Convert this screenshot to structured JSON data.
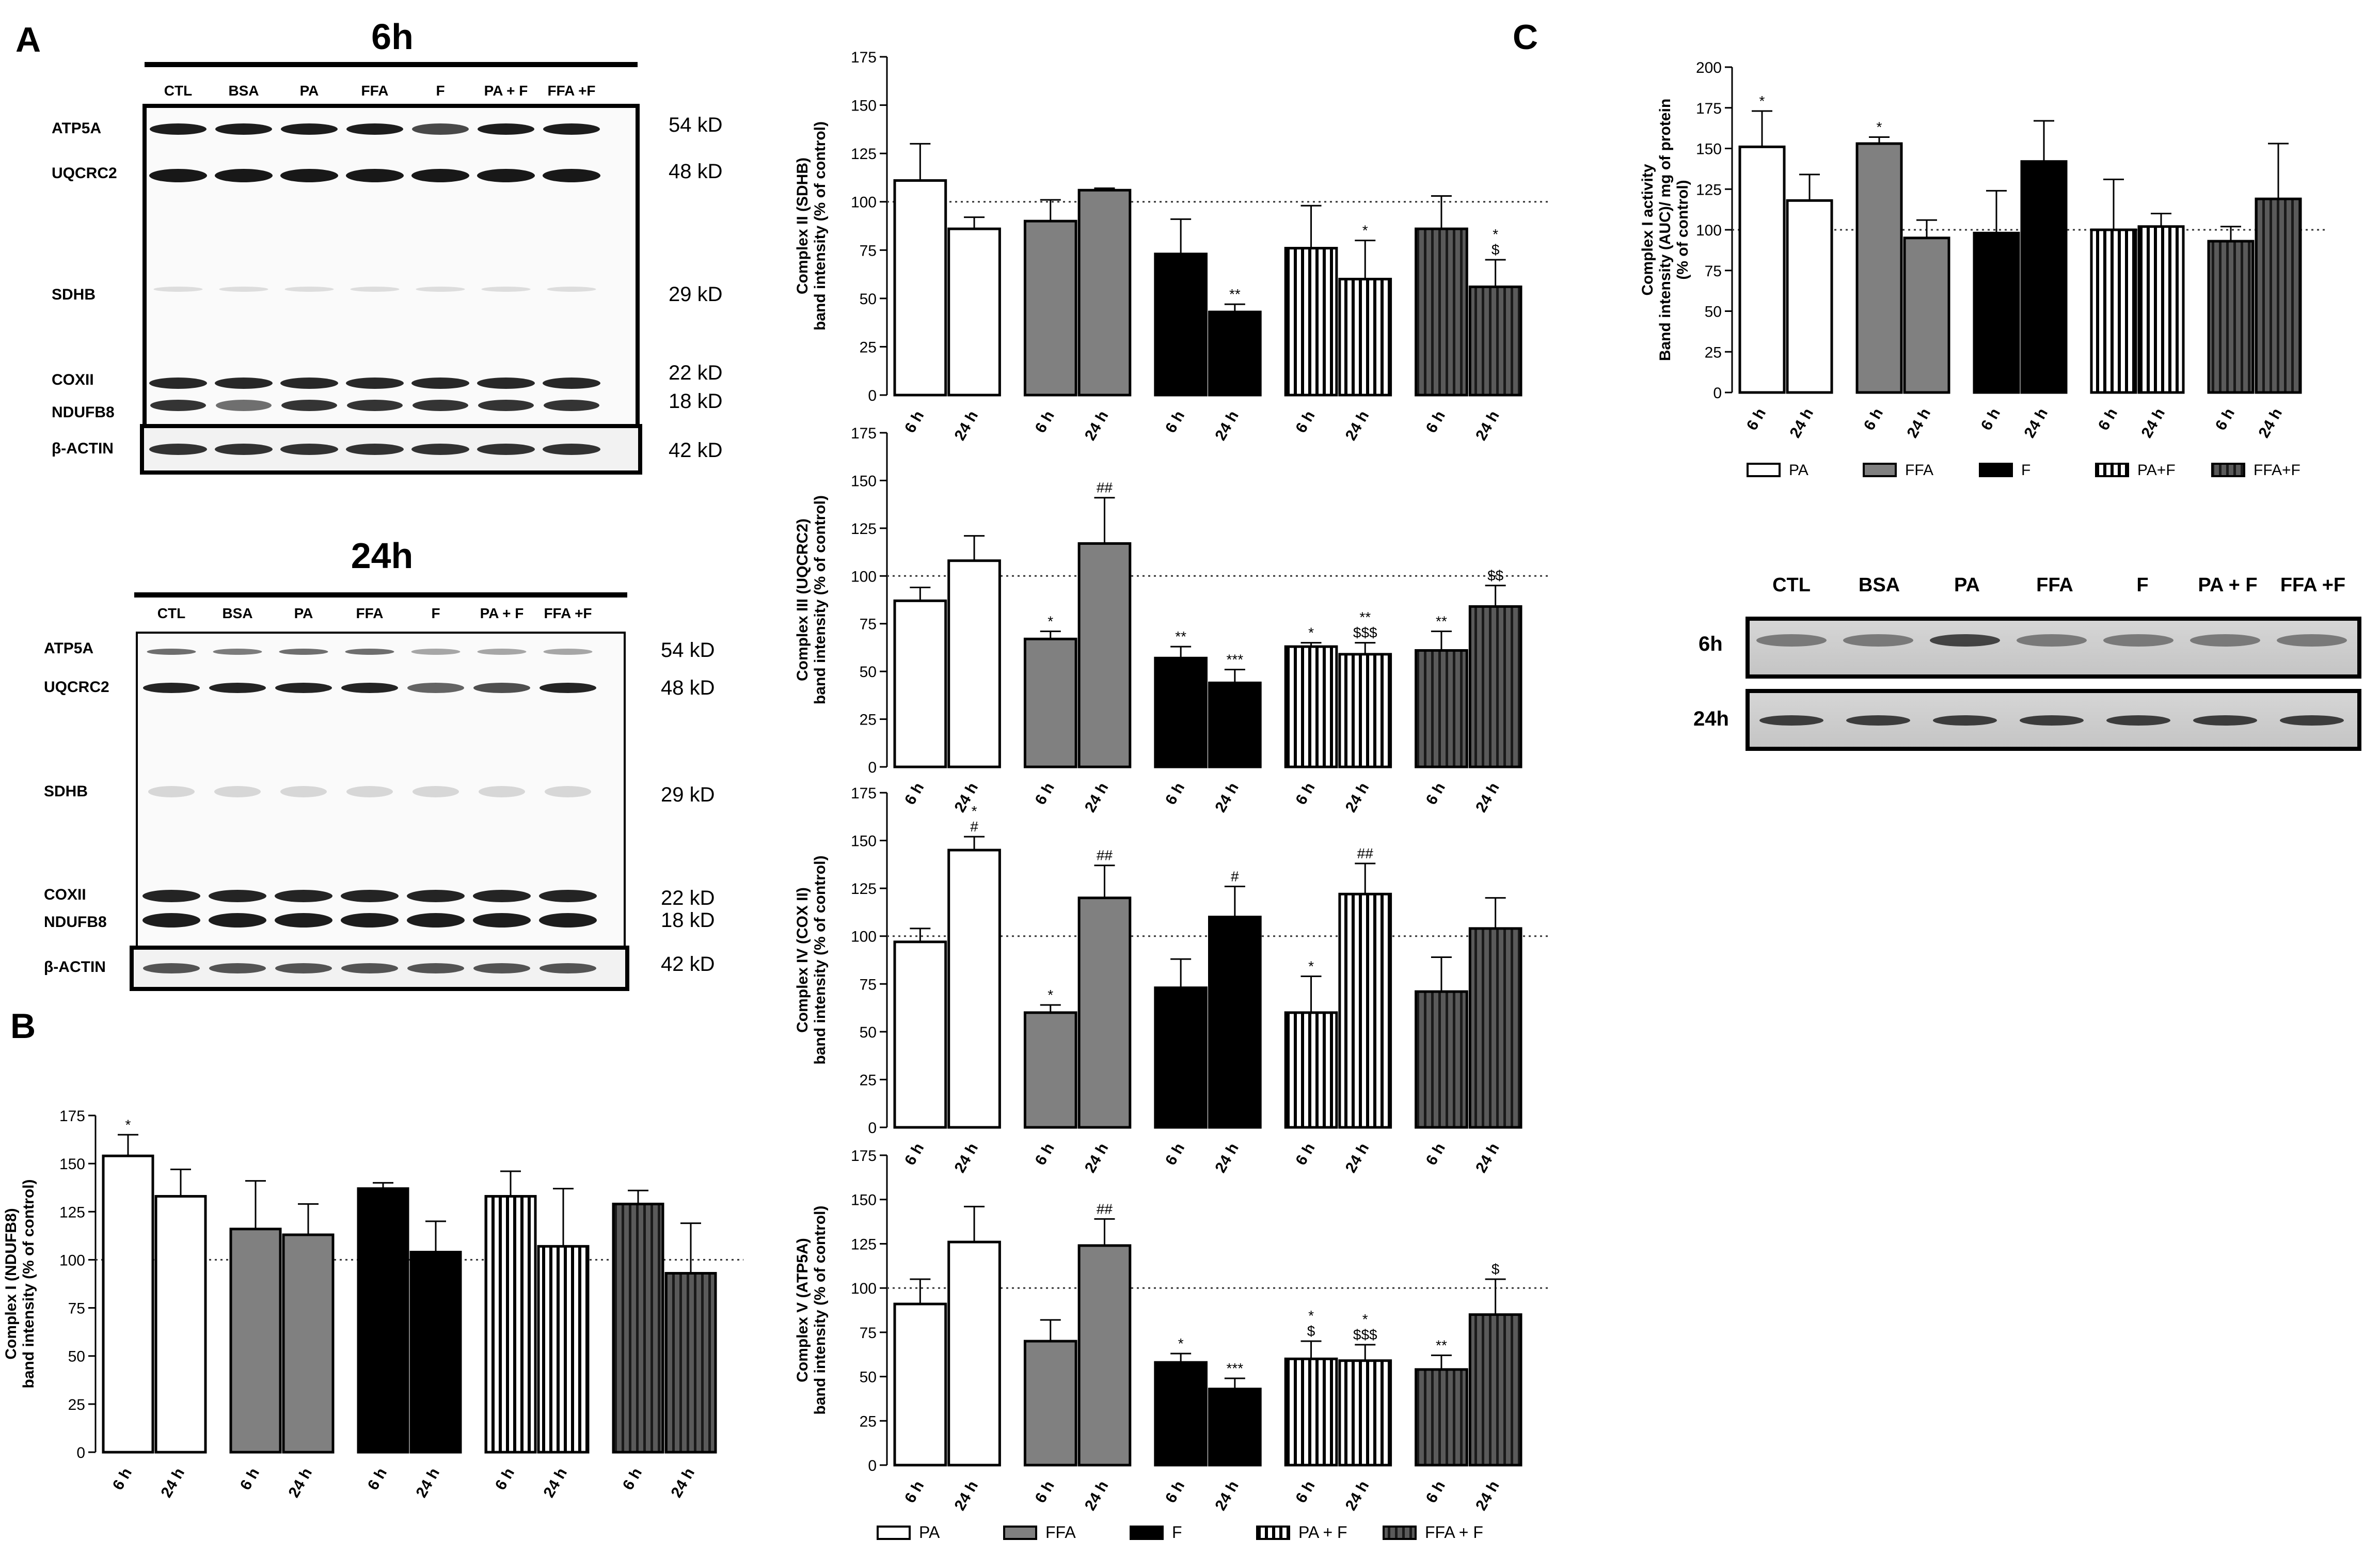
{
  "panel_letters": {
    "A": "A",
    "B": "B",
    "C": "C"
  },
  "colors": {
    "PA": "#ffffff",
    "FFA": "#808080",
    "F": "#000000",
    "PA+F": "stripes-vertical",
    "FFA+F": "stripes-dark"
  },
  "blot_6h": {
    "title": "6h",
    "lanes": [
      "CTL",
      "BSA",
      "PA",
      "FFA",
      "F",
      "PA + F",
      "FFA +F"
    ],
    "bands": [
      {
        "name": "ATP5A",
        "size": "54 kD"
      },
      {
        "name": "UQCRC2",
        "size": "48 kD"
      },
      {
        "name": "SDHB",
        "size": "29 kD"
      },
      {
        "name": "COXII",
        "size": "22 kD"
      },
      {
        "name": "NDUFB8",
        "size": "18 kD"
      },
      {
        "name": "β-ACTIN",
        "size": "42 kD"
      }
    ]
  },
  "blot_24h": {
    "title": "24h",
    "lanes": [
      "CTL",
      "BSA",
      "PA",
      "FFA",
      "F",
      "PA + F",
      "FFA +F"
    ],
    "bands": [
      {
        "name": "ATP5A",
        "size": "54 kD"
      },
      {
        "name": "UQCRC2",
        "size": "48 kD"
      },
      {
        "name": "SDHB",
        "size": "29 kD"
      },
      {
        "name": "COXII",
        "size": "22 kD"
      },
      {
        "name": "NDUFB8",
        "size": "18 kD"
      },
      {
        "name": "β-ACTIN",
        "size": "42 kD"
      }
    ]
  },
  "gel_c": {
    "lanes": [
      "CTL",
      "BSA",
      "PA",
      "FFA",
      "F",
      "PA + F",
      "FFA +F"
    ],
    "rows": [
      "6h",
      "24h"
    ]
  },
  "legend_main": [
    "PA",
    "FFA",
    "F",
    "PA + F",
    "FFA + F"
  ],
  "legend_c": [
    "PA",
    "FFA",
    "F",
    "PA+F",
    "FFA+F"
  ],
  "chart_data": [
    {
      "id": "complex_ii",
      "type": "bar",
      "title": "",
      "ylabel_line1": "Complex II (SDHB)",
      "ylabel_line2": "band intensity (% of control)",
      "ylim": [
        0,
        175
      ],
      "yticks": [
        "0",
        "25",
        "50",
        "75",
        "100",
        "125",
        "150",
        "175"
      ],
      "reference_line": 100,
      "categories": [
        "6 h",
        "24 h",
        "6 h",
        "24 h",
        "6 h",
        "24 h",
        "6 h",
        "24 h",
        "6 h",
        "24 h"
      ],
      "groups": [
        "PA",
        "PA",
        "FFA",
        "FFA",
        "F",
        "F",
        "PA+F",
        "PA+F",
        "FFA+F",
        "FFA+F"
      ],
      "values": [
        111,
        86,
        90,
        106,
        73,
        43,
        76,
        60,
        86,
        56
      ],
      "errors": [
        19,
        6,
        11,
        1,
        18,
        4,
        22,
        20,
        17,
        14
      ],
      "annotations": [
        "",
        "",
        "",
        "",
        "",
        "**",
        "",
        "*",
        "",
        "*\n$"
      ]
    },
    {
      "id": "complex_iii",
      "type": "bar",
      "ylabel_line1": "Complex III (UQCRC2)",
      "ylabel_line2": "band intensity (% of control)",
      "ylim": [
        0,
        175
      ],
      "yticks": [
        "0",
        "25",
        "50",
        "75",
        "100",
        "125",
        "150",
        "175"
      ],
      "reference_line": 100,
      "categories": [
        "6 h",
        "24 h",
        "6 h",
        "24 h",
        "6 h",
        "24 h",
        "6 h",
        "24 h",
        "6 h",
        "24 h"
      ],
      "groups": [
        "PA",
        "PA",
        "FFA",
        "FFA",
        "F",
        "F",
        "PA+F",
        "PA+F",
        "FFA+F",
        "FFA+F"
      ],
      "values": [
        87,
        108,
        67,
        117,
        57,
        44,
        63,
        59,
        61,
        84
      ],
      "errors": [
        7,
        13,
        4,
        24,
        6,
        7,
        2,
        6,
        10,
        11
      ],
      "annotations": [
        "",
        "",
        "*",
        "##",
        "**",
        "***",
        "*",
        "**\n$$$",
        "**",
        "$$"
      ]
    },
    {
      "id": "complex_iv",
      "type": "bar",
      "ylabel_line1": "Complex IV (COX II)",
      "ylabel_line2": "band intensity (% of control)",
      "ylim": [
        0,
        175
      ],
      "yticks": [
        "0",
        "25",
        "50",
        "75",
        "100",
        "125",
        "150",
        "175"
      ],
      "reference_line": 100,
      "categories": [
        "6 h",
        "24 h",
        "6 h",
        "24 h",
        "6 h",
        "24 h",
        "6 h",
        "24 h",
        "6 h",
        "24 h"
      ],
      "groups": [
        "PA",
        "PA",
        "FFA",
        "FFA",
        "F",
        "F",
        "PA+F",
        "PA+F",
        "FFA+F",
        "FFA+F"
      ],
      "values": [
        97,
        145,
        60,
        120,
        73,
        110,
        60,
        122,
        71,
        104
      ],
      "errors": [
        7,
        7,
        4,
        17,
        15,
        16,
        19,
        16,
        18,
        16
      ],
      "annotations": [
        "",
        "*\n#",
        "*",
        "##",
        "",
        "#",
        "*",
        "##",
        "",
        ""
      ]
    },
    {
      "id": "complex_v",
      "type": "bar",
      "ylabel_line1": "Complex V (ATP5A)",
      "ylabel_line2": "band intensity (% of control)",
      "ylim": [
        0,
        175
      ],
      "yticks": [
        "0",
        "25",
        "50",
        "75",
        "100",
        "125",
        "150",
        "175"
      ],
      "reference_line": 100,
      "categories": [
        "6 h",
        "24 h",
        "6 h",
        "24 h",
        "6 h",
        "24 h",
        "6 h",
        "24 h",
        "6 h",
        "24 h"
      ],
      "groups": [
        "PA",
        "PA",
        "FFA",
        "FFA",
        "F",
        "F",
        "PA+F",
        "PA+F",
        "FFA+F",
        "FFA+F"
      ],
      "values": [
        91,
        126,
        70,
        124,
        58,
        43,
        60,
        59,
        54,
        85
      ],
      "errors": [
        14,
        20,
        12,
        15,
        5,
        6,
        10,
        9,
        8,
        20
      ],
      "annotations": [
        "",
        "",
        "",
        "##",
        "*",
        "***",
        "*\n$",
        "*\n$$$",
        "**",
        "$"
      ]
    },
    {
      "id": "complex_i",
      "type": "bar",
      "ylabel_line1": "Complex I (NDUFB8)",
      "ylabel_line2": "band intensity (% of control)",
      "ylim": [
        0,
        175
      ],
      "yticks": [
        "0",
        "25",
        "50",
        "75",
        "100",
        "125",
        "150",
        "175"
      ],
      "reference_line": 100,
      "categories": [
        "6 h",
        "24 h",
        "6 h",
        "24 h",
        "6 h",
        "24 h",
        "6 h",
        "24 h",
        "6 h",
        "24 h"
      ],
      "groups": [
        "PA",
        "PA",
        "FFA",
        "FFA",
        "F",
        "F",
        "PA+F",
        "PA+F",
        "FFA+F",
        "FFA+F"
      ],
      "values": [
        154,
        133,
        116,
        113,
        137,
        104,
        133,
        107,
        129,
        93
      ],
      "errors": [
        11,
        14,
        25,
        16,
        3,
        16,
        13,
        30,
        7,
        26
      ],
      "annotations": [
        "*",
        "",
        "",
        "",
        "",
        "",
        "",
        "",
        "",
        ""
      ]
    },
    {
      "id": "complex_i_activity",
      "type": "bar",
      "ylabel_line1": "Complex I activity",
      "ylabel_line2": "Band intensity (AUC)/ mg of protein",
      "ylabel_line3": "(% of control)",
      "ylim": [
        0,
        200
      ],
      "yticks": [
        "0",
        "25",
        "50",
        "75",
        "100",
        "125",
        "150",
        "175",
        "200"
      ],
      "reference_line": 100,
      "categories": [
        "6 h",
        "24 h",
        "6 h",
        "24 h",
        "6 h",
        "24 h",
        "6 h",
        "24 h",
        "6 h",
        "24 h"
      ],
      "groups": [
        "PA",
        "PA",
        "FFA",
        "FFA",
        "F",
        "F",
        "PA+F",
        "PA+F",
        "FFA+F",
        "FFA+F"
      ],
      "values": [
        151,
        118,
        153,
        95,
        98,
        142,
        100,
        102,
        93,
        119
      ],
      "errors": [
        22,
        16,
        4,
        11,
        26,
        25,
        31,
        8,
        9,
        34
      ],
      "annotations": [
        "*",
        "",
        "*",
        "",
        "",
        "",
        "",
        "",
        "",
        ""
      ]
    }
  ]
}
